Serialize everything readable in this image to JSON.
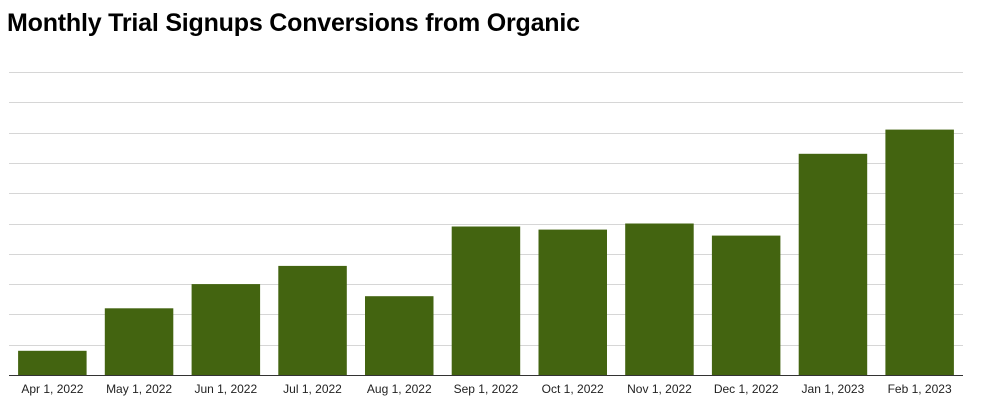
{
  "chart_data": {
    "type": "bar",
    "title": "Monthly Trial Signups Conversions from Organic",
    "xlabel": "",
    "ylabel": "",
    "categories": [
      "Apr 1, 2022",
      "May 1, 2022",
      "Jun 1, 2022",
      "Jul 1, 2022",
      "Aug 1, 2022",
      "Sep 1, 2022",
      "Oct 1, 2022",
      "Nov 1, 2022",
      "Dec 1, 2022",
      "Jan 1, 2023",
      "Feb 1, 2023"
    ],
    "values": [
      0.8,
      2.2,
      3.0,
      3.6,
      2.6,
      4.9,
      4.8,
      5.0,
      4.6,
      7.3,
      8.1
    ],
    "ylim": [
      0,
      10
    ],
    "grid": true,
    "legend": "none",
    "colors": {
      "bar": "#436410",
      "grid": "#d6d6d6",
      "axis": "#333333"
    }
  }
}
